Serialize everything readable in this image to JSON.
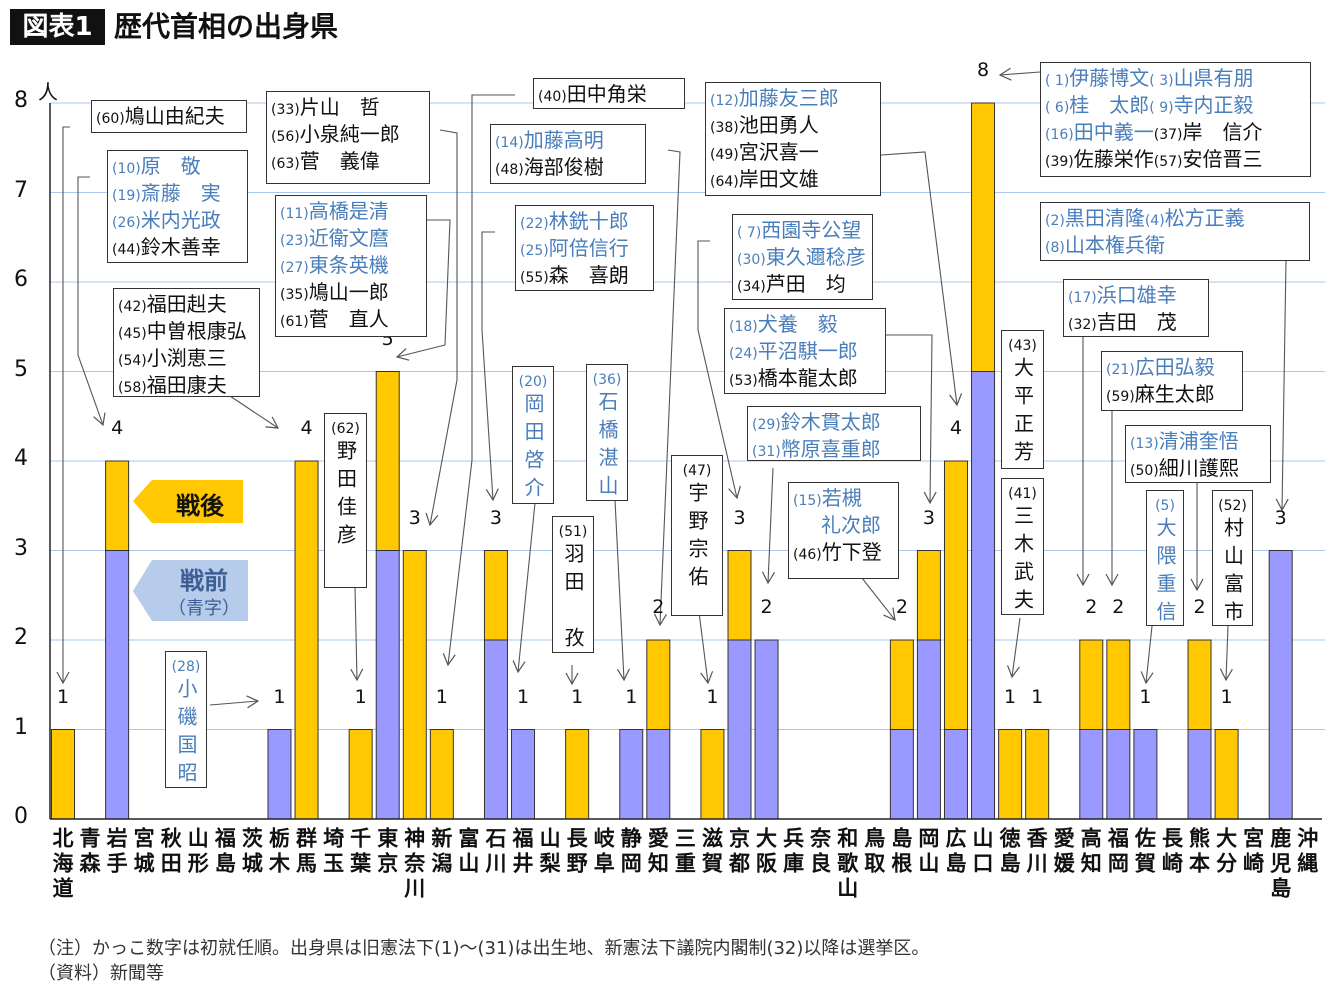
{
  "header": {
    "badge": "図表1",
    "title": "歴代首相の出身県"
  },
  "legend": {
    "postwar": "戦後",
    "prewar": "戦前",
    "prewar_note": "（青字）"
  },
  "colors": {
    "prewar_bar": "#9999ff",
    "postwar_bar": "#ffc800",
    "prewar_text": "#4a7ebb",
    "grid": "#a9c8ee"
  },
  "notes": [
    "（注）かっこ数字は初就任順。出身県は旧憲法下(1)〜(31)は出生地、新憲法下議院内閣制(32)以降は選挙区。",
    "（資料）新聞等"
  ],
  "chart_data": {
    "type": "bar",
    "stacked": true,
    "title": "歴代首相の出身県",
    "ylabel": "人",
    "ylim": [
      0,
      8
    ],
    "yticks": [
      "0",
      "1",
      "2",
      "3",
      "4",
      "5",
      "6",
      "7",
      "8"
    ],
    "grid": true,
    "categories": [
      "北海道",
      "青森",
      "岩手",
      "宮城",
      "秋田",
      "山形",
      "福島",
      "茨城",
      "栃木",
      "群馬",
      "埼玉",
      "千葉",
      "東京",
      "神奈川",
      "新潟",
      "富山",
      "石川",
      "福井",
      "山梨",
      "長野",
      "岐阜",
      "静岡",
      "愛知",
      "三重",
      "滋賀",
      "京都",
      "大阪",
      "兵庫",
      "奈良",
      "和歌山",
      "鳥取",
      "島根",
      "岡山",
      "広島",
      "山口",
      "徳島",
      "香川",
      "愛媛",
      "高知",
      "福岡",
      "佐賀",
      "長崎",
      "熊本",
      "大分",
      "宮崎",
      "鹿児島",
      "沖縄"
    ],
    "series": [
      {
        "name": "戦前",
        "values": [
          0,
          0,
          3,
          0,
          0,
          0,
          0,
          0,
          1,
          0,
          0,
          0,
          3,
          0,
          0,
          0,
          2,
          1,
          0,
          0,
          0,
          1,
          1,
          0,
          0,
          2,
          2,
          0,
          0,
          0,
          0,
          1,
          2,
          1,
          5,
          0,
          0,
          0,
          1,
          1,
          1,
          0,
          1,
          0,
          0,
          3,
          0
        ]
      },
      {
        "name": "戦後",
        "values": [
          1,
          0,
          1,
          0,
          0,
          0,
          0,
          0,
          0,
          4,
          0,
          1,
          2,
          3,
          1,
          0,
          1,
          0,
          0,
          1,
          0,
          0,
          1,
          0,
          1,
          1,
          0,
          0,
          0,
          0,
          0,
          1,
          1,
          3,
          3,
          1,
          1,
          0,
          1,
          1,
          0,
          0,
          1,
          1,
          0,
          0,
          0
        ]
      }
    ],
    "data_labels": [
      "1",
      "",
      "4",
      "",
      "",
      "",
      "",
      "",
      "1",
      "4",
      "",
      "1",
      "5",
      "3",
      "1",
      "",
      "3",
      "1",
      "",
      "1",
      "",
      "1",
      "2",
      "",
      "1",
      "3",
      "2",
      "",
      "",
      "",
      "",
      "2",
      "3",
      "4",
      "8",
      "1",
      "1",
      "",
      "2",
      "2",
      "1",
      "",
      "2",
      "1",
      "",
      "3",
      ""
    ]
  },
  "annotations": [
    {
      "pref": "北海道",
      "vertical": false,
      "lines": [
        [
          {
            "num": "(60)",
            "name": "鳩山由紀夫",
            "era": "post"
          }
        ]
      ]
    },
    {
      "pref": "岩手",
      "vertical": false,
      "lines": [
        [
          {
            "num": "(10)",
            "name": "原　敬",
            "era": "pre"
          }
        ],
        [
          {
            "num": "(19)",
            "name": "斎藤　実",
            "era": "pre"
          }
        ],
        [
          {
            "num": "(26)",
            "name": "米内光政",
            "era": "pre"
          }
        ],
        [
          {
            "num": "(44)",
            "name": "鈴木善幸",
            "era": "post"
          }
        ]
      ]
    },
    {
      "pref": "群馬",
      "vertical": false,
      "lines": [
        [
          {
            "num": "(42)",
            "name": "福田赳夫",
            "era": "post"
          }
        ],
        [
          {
            "num": "(45)",
            "name": "中曽根康弘",
            "era": "post"
          }
        ],
        [
          {
            "num": "(54)",
            "name": "小渕恵三",
            "era": "post"
          }
        ],
        [
          {
            "num": "(58)",
            "name": "福田康夫",
            "era": "post"
          }
        ]
      ]
    },
    {
      "pref": "神奈川",
      "vertical": false,
      "lines": [
        [
          {
            "num": "(33)",
            "name": "片山　哲",
            "era": "post"
          }
        ],
        [
          {
            "num": "(56)",
            "name": "小泉純一郎",
            "era": "post"
          }
        ],
        [
          {
            "num": "(63)",
            "name": "菅　義偉",
            "era": "post"
          }
        ]
      ]
    },
    {
      "pref": "東京",
      "vertical": false,
      "lines": [
        [
          {
            "num": "(11)",
            "name": "高橋是清",
            "era": "pre"
          }
        ],
        [
          {
            "num": "(23)",
            "name": "近衛文麿",
            "era": "pre"
          }
        ],
        [
          {
            "num": "(27)",
            "name": "東条英機",
            "era": "pre"
          }
        ],
        [
          {
            "num": "(35)",
            "name": "鳩山一郎",
            "era": "post"
          }
        ],
        [
          {
            "num": "(61)",
            "name": "菅　直人",
            "era": "post"
          }
        ]
      ]
    },
    {
      "pref": "新潟",
      "vertical": false,
      "lines": [
        [
          {
            "num": "(40)",
            "name": "田中角栄",
            "era": "post"
          }
        ]
      ]
    },
    {
      "pref": "愛知",
      "vertical": false,
      "lines": [
        [
          {
            "num": "(14)",
            "name": "加藤高明",
            "era": "pre"
          }
        ],
        [
          {
            "num": "(48)",
            "name": "海部俊樹",
            "era": "post"
          }
        ]
      ]
    },
    {
      "pref": "石川",
      "vertical": false,
      "lines": [
        [
          {
            "num": "(22)",
            "name": "林銑十郎",
            "era": "pre"
          }
        ],
        [
          {
            "num": "(25)",
            "name": "阿倍信行",
            "era": "pre"
          }
        ],
        [
          {
            "num": "(55)",
            "name": "森　喜朗",
            "era": "post"
          }
        ]
      ]
    },
    {
      "pref": "広島",
      "vertical": false,
      "lines": [
        [
          {
            "num": "(12)",
            "name": "加藤友三郎",
            "era": "pre"
          }
        ],
        [
          {
            "num": "(38)",
            "name": "池田勇人",
            "era": "post"
          }
        ],
        [
          {
            "num": "(49)",
            "name": "宮沢喜一",
            "era": "post"
          }
        ],
        [
          {
            "num": "(64)",
            "name": "岸田文雄",
            "era": "post"
          }
        ]
      ]
    },
    {
      "pref": "京都",
      "vertical": false,
      "lines": [
        [
          {
            "num": "( 7)",
            "name": "西園寺公望",
            "era": "pre"
          }
        ],
        [
          {
            "num": "(30)",
            "name": "東久邇稔彦",
            "era": "pre"
          }
        ],
        [
          {
            "num": "(34)",
            "name": "芦田　均",
            "era": "post"
          }
        ]
      ]
    },
    {
      "pref": "岡山",
      "vertical": false,
      "lines": [
        [
          {
            "num": "(18)",
            "name": "犬養　毅",
            "era": "pre"
          }
        ],
        [
          {
            "num": "(24)",
            "name": "平沼騏一郎",
            "era": "pre"
          }
        ],
        [
          {
            "num": "(53)",
            "name": "橋本龍太郎",
            "era": "post"
          }
        ]
      ]
    },
    {
      "pref": "大阪",
      "vertical": false,
      "lines": [
        [
          {
            "num": "(29)",
            "name": "鈴木貫太郎",
            "era": "pre"
          }
        ],
        [
          {
            "num": "(31)",
            "name": "幣原喜重郎",
            "era": "pre"
          }
        ]
      ]
    },
    {
      "pref": "島根",
      "vertical": false,
      "lines": [
        [
          {
            "num": "(15)",
            "name": "若槻",
            "era": "pre"
          }
        ],
        [
          {
            "num": "　　",
            "name": "礼次郎",
            "era": "pre"
          }
        ],
        [
          {
            "num": "(46)",
            "name": "竹下登",
            "era": "post"
          }
        ]
      ]
    },
    {
      "pref": "福井",
      "vertical": true,
      "lines": [
        [
          {
            "num": "(20)",
            "name": "岡田啓介",
            "era": "pre"
          }
        ]
      ]
    },
    {
      "pref": "静岡",
      "vertical": true,
      "lines": [
        [
          {
            "num": "(36)",
            "name": "石橋湛山",
            "era": "pre"
          }
        ]
      ]
    },
    {
      "pref": "長野",
      "vertical": true,
      "lines": [
        [
          {
            "num": "(51)",
            "name": "羽田　孜",
            "era": "post"
          }
        ]
      ]
    },
    {
      "pref": "滋賀",
      "vertical": true,
      "lines": [
        [
          {
            "num": "(47)",
            "name": "宇野宗佑",
            "era": "post"
          }
        ]
      ]
    },
    {
      "pref": "千葉",
      "vertical": true,
      "lines": [
        [
          {
            "num": "(62)",
            "name": "野田佳彦",
            "era": "post"
          }
        ]
      ]
    },
    {
      "pref": "栃木",
      "vertical": true,
      "lines": [
        [
          {
            "num": "(28)",
            "name": "小磯国昭",
            "era": "pre"
          }
        ]
      ]
    },
    {
      "pref": "山口",
      "vertical": false,
      "lines": [
        [
          {
            "num": "( 1)",
            "name": "伊藤博文",
            "era": "pre"
          },
          {
            "num": "( 3)",
            "name": "山県有朋",
            "era": "pre"
          }
        ],
        [
          {
            "num": "( 6)",
            "name": "桂　太郎",
            "era": "pre"
          },
          {
            "num": "( 9)",
            "name": "寺内正毅",
            "era": "pre"
          }
        ],
        [
          {
            "num": "(16)",
            "name": "田中義一",
            "era": "pre"
          },
          {
            "num": "(37)",
            "name": "岸　信介",
            "era": "post"
          }
        ],
        [
          {
            "num": "(39)",
            "name": "佐藤栄作",
            "era": "post"
          },
          {
            "num": "(57)",
            "name": "安倍晋三",
            "era": "post"
          }
        ]
      ]
    },
    {
      "pref": "鹿児島",
      "vertical": false,
      "lines": [
        [
          {
            "num": "(2)",
            "name": "黒田清隆",
            "era": "pre"
          },
          {
            "num": "(4)",
            "name": "松方正義",
            "era": "pre"
          }
        ],
        [
          {
            "num": "(8)",
            "name": "山本権兵衛",
            "era": "pre"
          }
        ]
      ]
    },
    {
      "pref": "高知",
      "vertical": false,
      "lines": [
        [
          {
            "num": "(17)",
            "name": "浜口雄幸",
            "era": "pre"
          }
        ],
        [
          {
            "num": "(32)",
            "name": "吉田　茂",
            "era": "post"
          }
        ]
      ]
    },
    {
      "pref": "福岡",
      "vertical": false,
      "lines": [
        [
          {
            "num": "(21)",
            "name": "広田弘毅",
            "era": "pre"
          }
        ],
        [
          {
            "num": "(59)",
            "name": "麻生太郎",
            "era": "post"
          }
        ]
      ]
    },
    {
      "pref": "熊本",
      "vertical": false,
      "lines": [
        [
          {
            "num": "(13)",
            "name": "清浦奎悟",
            "era": "pre"
          }
        ],
        [
          {
            "num": "(50)",
            "name": "細川護熙",
            "era": "post"
          }
        ]
      ]
    },
    {
      "pref": "香川",
      "vertical": true,
      "lines": [
        [
          {
            "num": "(43)",
            "name": "大平正芳",
            "era": "post"
          }
        ]
      ]
    },
    {
      "pref": "徳島",
      "vertical": true,
      "lines": [
        [
          {
            "num": "(41)",
            "name": "三木武夫",
            "era": "post"
          }
        ]
      ]
    },
    {
      "pref": "佐賀",
      "vertical": true,
      "lines": [
        [
          {
            "num": "(5)",
            "name": "大隈重信",
            "era": "pre"
          }
        ]
      ]
    },
    {
      "pref": "大分",
      "vertical": true,
      "lines": [
        [
          {
            "num": "(52)",
            "name": "村山富市",
            "era": "post"
          }
        ]
      ]
    }
  ]
}
